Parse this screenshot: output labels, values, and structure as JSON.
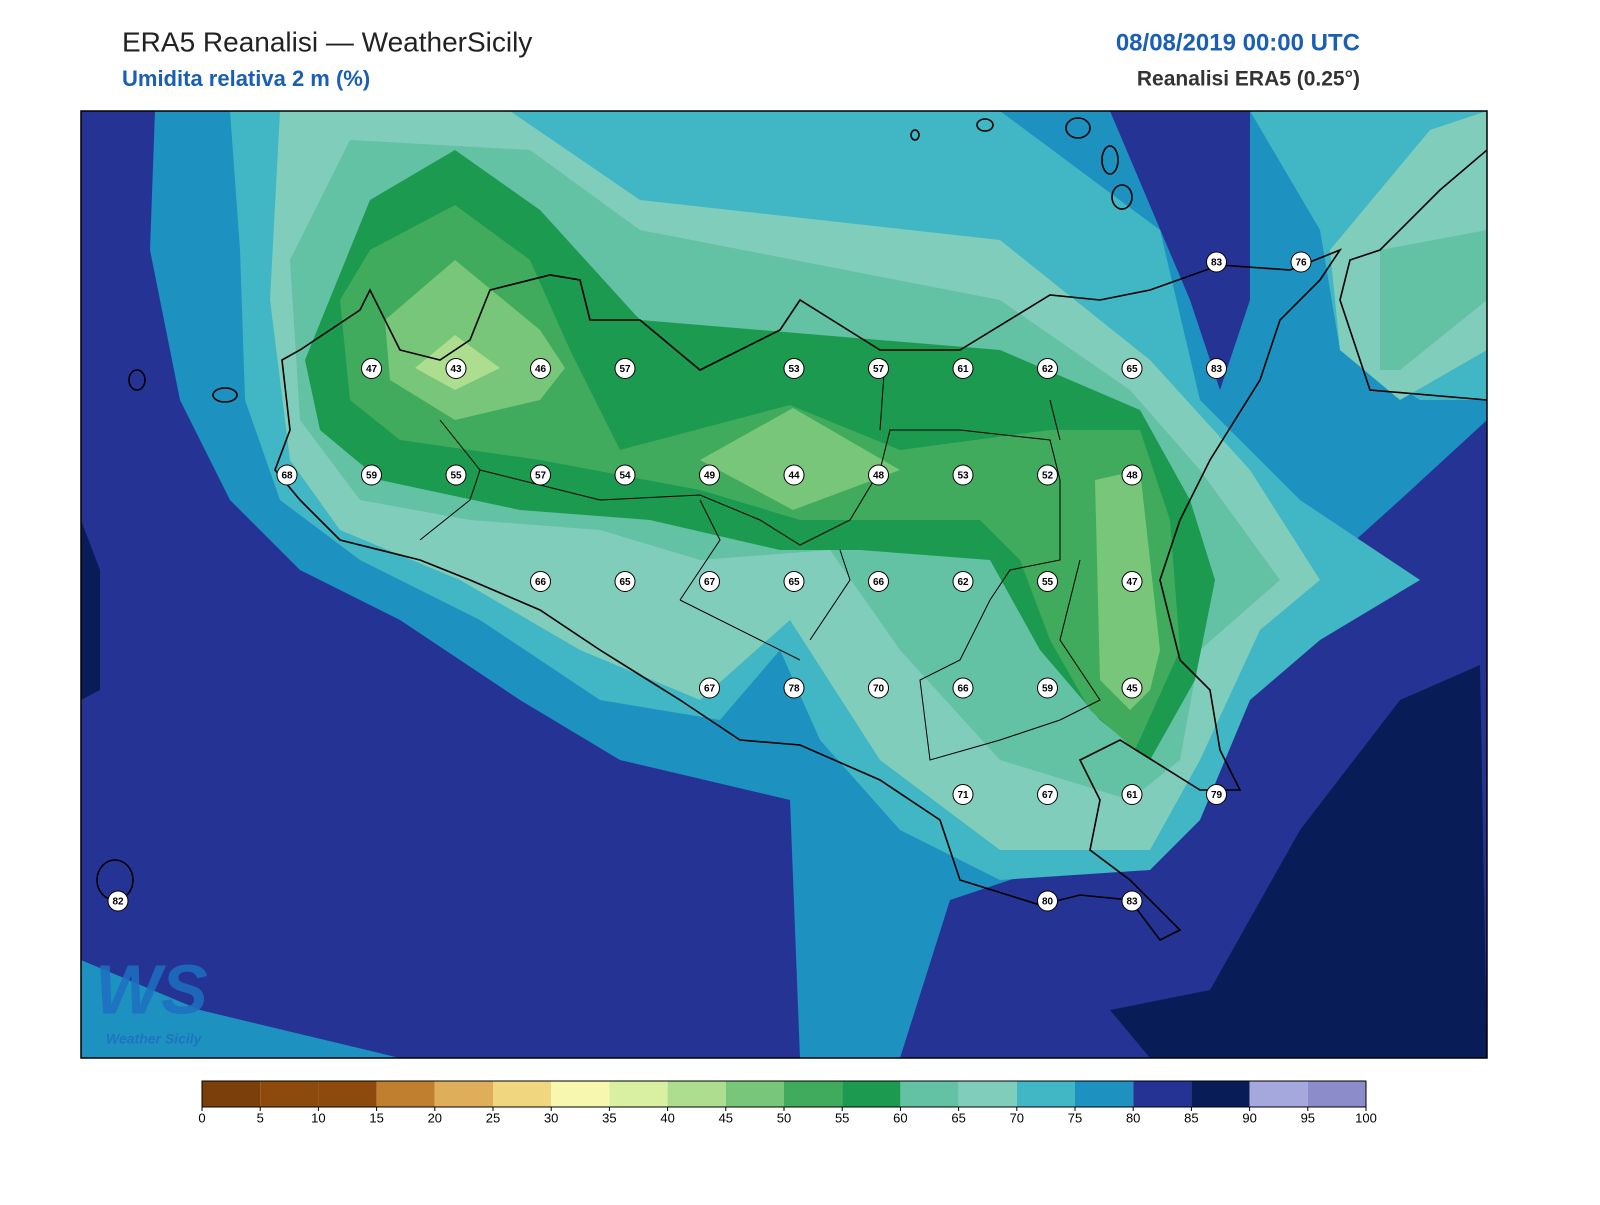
{
  "header": {
    "title": "ERA5 Reanalisi — WeatherSicily",
    "subtitle": "Umidita relativa 2 m (%)",
    "datetime": "08/08/2019 00:00 UTC",
    "source": "Reanalisi ERA5 (0.25°)"
  },
  "stations": [
    83,
    76,
    47,
    43,
    46,
    57,
    53,
    57,
    61,
    62,
    65,
    83,
    68,
    59,
    55,
    57,
    54,
    49,
    44,
    48,
    53,
    52,
    48,
    66,
    65,
    67,
    65,
    66,
    62,
    55,
    47,
    67,
    78,
    70,
    66,
    59,
    45,
    71,
    67,
    61,
    79,
    80,
    83,
    82
  ],
  "colorbar": {
    "ticks": [
      0,
      5,
      10,
      15,
      20,
      25,
      30,
      35,
      40,
      45,
      50,
      55,
      60,
      65,
      70,
      75,
      80,
      85,
      90,
      95,
      100
    ],
    "colors": [
      "#7a3f0a",
      "#8c4b0d",
      "#8c4b0d",
      "#c07f2e",
      "#dfae5a",
      "#f0d77f",
      "#f7f7b0",
      "#d9f0a3",
      "#addd8e",
      "#78c679",
      "#41ab5d",
      "#1b9a50",
      "#63c1a4",
      "#80cdbc",
      "#41b6c4",
      "#1d91c0",
      "#253494",
      "#081d58",
      "#a4a8dc",
      "#8c8ccb"
    ]
  },
  "logo": {
    "mark": "WS",
    "name": "Weather Sicily"
  }
}
